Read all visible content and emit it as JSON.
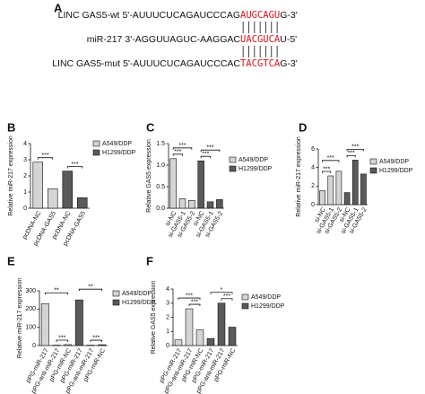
{
  "panel_a": {
    "label": "A",
    "rows": [
      {
        "name": "LINC GAS5-wt",
        "prefix": "5'-AUUUCUCAGAUCCCAG",
        "site": "AUGCAGU",
        "suffix": "G-3'"
      },
      {
        "name": "miR-217",
        "prefix": "3'-AGGUUAGUC-AAGGAC",
        "site": "UACGUCA",
        "suffix": "U-5'"
      },
      {
        "name": "LINC GAS5-mut",
        "prefix": "5'-AUUUCUCAGAUCCCAC",
        "site": "TACGTCA",
        "suffix": "G-3'"
      }
    ]
  },
  "chart_data": [
    {
      "type": "bar",
      "panel": "B",
      "ylabel": "Relative miR-217 expression",
      "categories": [
        "pcDNA-NC",
        "pcDNA-GAS5",
        "pcDNA-NC",
        "pcDNA-GAS5"
      ],
      "series": [
        {
          "name": "A549/DDP",
          "color": "#d4d4d4",
          "values": [
            2.85,
            1.2,
            null,
            null
          ]
        },
        {
          "name": "H1299/DDP",
          "color": "#5a5a5a",
          "values": [
            null,
            null,
            2.3,
            0.65
          ]
        }
      ],
      "ylim": [
        0,
        4
      ],
      "yticks": [
        0,
        1,
        2,
        3,
        4
      ],
      "annotations": [
        {
          "text": "***",
          "from": 0,
          "to": 1
        },
        {
          "text": "***",
          "from": 2,
          "to": 3
        }
      ]
    },
    {
      "type": "bar",
      "panel": "C",
      "ylabel": "Relative GAS5 expression",
      "categories": [
        "si-NC",
        "si-GAS5-1",
        "si-GAS5-2",
        "si-NC",
        "si-GAS5-1",
        "si-GAS5-2"
      ],
      "series": [
        {
          "name": "A549/DDP",
          "color": "#d4d4d4",
          "values": [
            1.15,
            0.22,
            0.18,
            null,
            null,
            null
          ]
        },
        {
          "name": "H1299/DDP",
          "color": "#5a5a5a",
          "values": [
            null,
            null,
            null,
            1.1,
            0.15,
            0.2
          ]
        }
      ],
      "ylim": [
        0,
        1.5
      ],
      "yticks": [
        {
          "value": 0,
          "label": "0.0"
        },
        0.5,
        {
          "value": 1,
          "label": "1.0"
        },
        1.5
      ],
      "annotations": [
        {
          "text": "***",
          "from": 0,
          "to": 1
        },
        {
          "text": "***",
          "from": 0,
          "to": 2
        },
        {
          "text": "***",
          "from": 3,
          "to": 4
        },
        {
          "text": "***",
          "from": 3,
          "to": 5
        }
      ]
    },
    {
      "type": "bar",
      "panel": "D",
      "ylabel": "Relative miR-217 expression",
      "categories": [
        "si-NC",
        "si-GAS5-1",
        "si-GAS5-2",
        "si-NC",
        "si-GAS5-1",
        "si-GAS5-2"
      ],
      "series": [
        {
          "name": "A549/DDP",
          "color": "#d4d4d4",
          "values": [
            1.5,
            3.1,
            3.6,
            null,
            null,
            null
          ]
        },
        {
          "name": "H1299/DDP",
          "color": "#5a5a5a",
          "values": [
            null,
            null,
            null,
            1.3,
            4.8,
            3.3
          ]
        }
      ],
      "ylim": [
        0,
        6
      ],
      "yticks": [
        0,
        2,
        4,
        6
      ],
      "annotations": [
        {
          "text": "***",
          "from": 0,
          "to": 1
        },
        {
          "text": "***",
          "from": 0,
          "to": 2
        },
        {
          "text": "***",
          "from": 3,
          "to": 4
        },
        {
          "text": "***",
          "from": 3,
          "to": 5
        }
      ]
    },
    {
      "type": "bar",
      "panel": "E",
      "ylabel": "Relative miR-217 expression",
      "categories": [
        "pPG-miR-217",
        "pPG-anti-miR-217",
        "pPG-miR-NC",
        "pPG-miR-217",
        "pPG-anti-miR-217",
        "pPG-miR-NC"
      ],
      "series": [
        {
          "name": "A549/DDP",
          "color": "#d4d4d4",
          "values": [
            230,
            2,
            5,
            null,
            null,
            null
          ]
        },
        {
          "name": "H1299/DDP",
          "color": "#5a5a5a",
          "values": [
            null,
            null,
            null,
            250,
            2,
            4.5
          ]
        }
      ],
      "ylim": [
        0,
        300
      ],
      "yticks": [
        0,
        100,
        200,
        300
      ],
      "annotations": [
        {
          "text": "***",
          "from": 1,
          "to": 2
        },
        {
          "text": "**",
          "from": 0,
          "to": 2
        },
        {
          "text": "***",
          "from": 4,
          "to": 5
        },
        {
          "text": "**",
          "from": 3,
          "to": 5
        }
      ]
    },
    {
      "type": "bar",
      "panel": "F",
      "ylabel": "Relative GAS5 expression",
      "categories": [
        "pPG-miR-217",
        "pPG-anti-miR-217",
        "pPG-miR-NC",
        "pPG-miR-217",
        "pPG-anti-miR-217",
        "pPG-miR-NC"
      ],
      "series": [
        {
          "name": "A549/DDP",
          "color": "#d4d4d4",
          "values": [
            0.4,
            2.6,
            1.1,
            null,
            null,
            null
          ]
        },
        {
          "name": "H1299/DDP",
          "color": "#5a5a5a",
          "values": [
            null,
            null,
            null,
            0.5,
            3.0,
            1.3
          ]
        }
      ],
      "ylim": [
        0,
        4
      ],
      "yticks": [
        0,
        1,
        2,
        3,
        4
      ],
      "annotations": [
        {
          "text": "***",
          "from": 1,
          "to": 2
        },
        {
          "text": "***",
          "from": 0,
          "to": 2
        },
        {
          "text": "***",
          "from": 4,
          "to": 5
        },
        {
          "text": "*",
          "from": 3,
          "to": 5
        }
      ]
    }
  ]
}
